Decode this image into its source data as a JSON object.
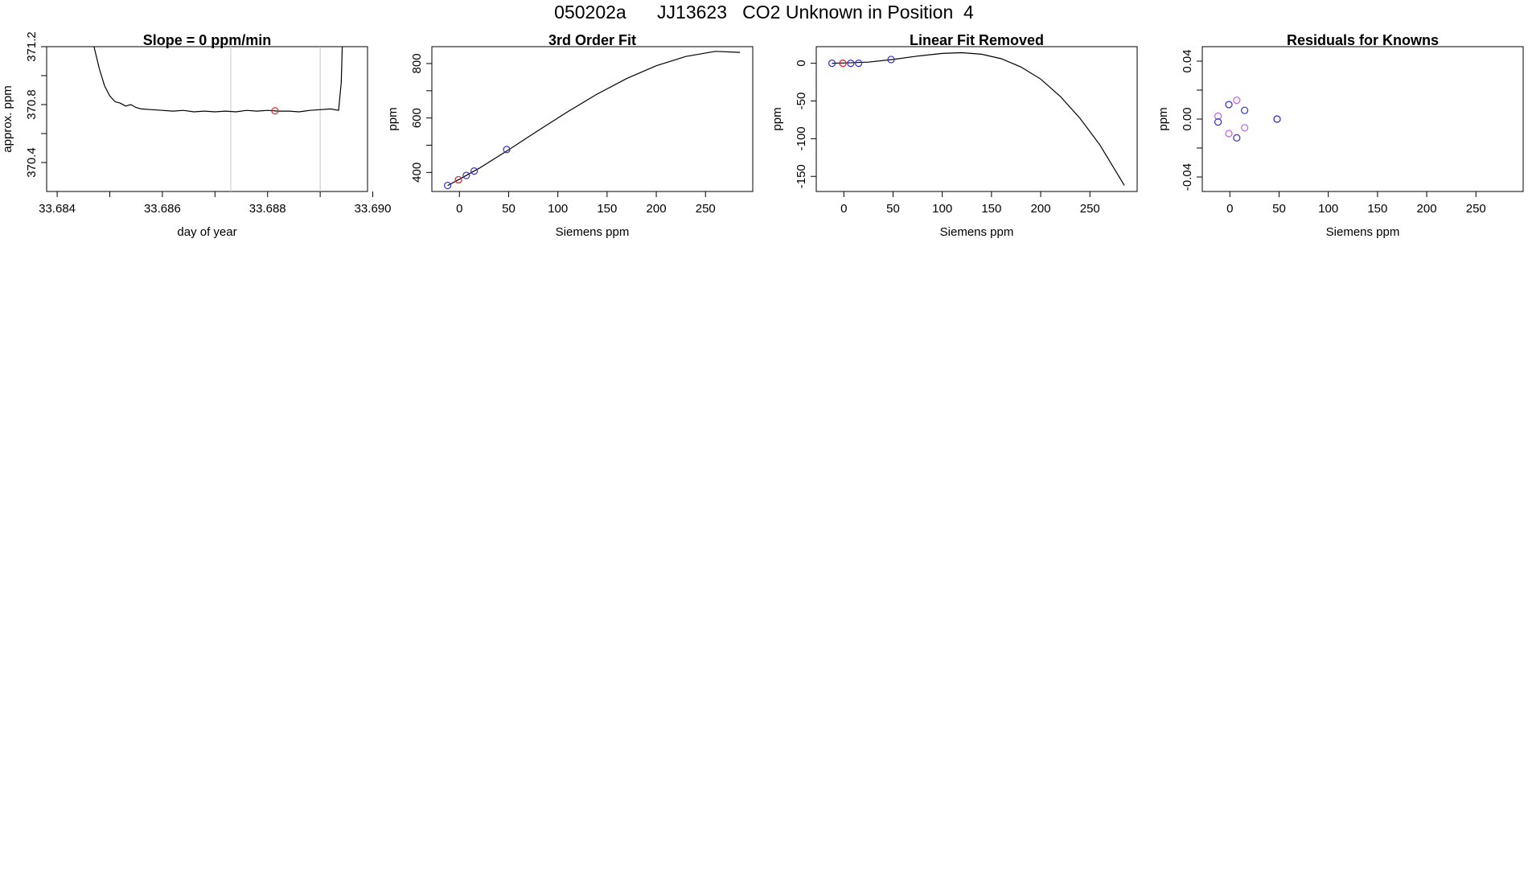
{
  "page": {
    "title": "050202a      JJ13623   CO2 Unknown in Position  4"
  },
  "colors": {
    "line": "#000000",
    "axis": "#000000",
    "grid": "#c8c8c8",
    "known": "#3030d0",
    "unknown": "#e03030",
    "residual_alt": "#c060e0"
  },
  "chart_data": [
    {
      "type": "line",
      "title": "Slope =  0  ppm/min",
      "xlabel": "day of year",
      "ylabel": "approx. ppm",
      "xlim": [
        33.6838,
        33.6899
      ],
      "ylim": [
        370.2,
        371.2
      ],
      "xticks": [
        33.684,
        33.685,
        33.686,
        33.687,
        33.688,
        33.689,
        33.69
      ],
      "xticklabels": [
        "33.684",
        "",
        "33.686",
        "",
        "33.688",
        "",
        "33.690"
      ],
      "yticks": [
        370.4,
        370.6,
        370.8,
        371.0,
        371.2
      ],
      "yticklabels": [
        "370.4",
        "",
        "370.8",
        "",
        "371.2"
      ],
      "vlines": [
        33.6873,
        33.689
      ],
      "series": [
        {
          "x": [
            33.6847,
            33.6848,
            33.6849,
            33.685,
            33.6851,
            33.6852,
            33.6853,
            33.6854,
            33.6855,
            33.6856,
            33.6858,
            33.686,
            33.6862,
            33.6864,
            33.6866,
            33.6868,
            33.687,
            33.6872,
            33.6874,
            33.6876,
            33.6878,
            33.688,
            33.6882,
            33.6884,
            33.6886,
            33.6888,
            33.689,
            33.6892,
            33.68935,
            33.6894,
            33.68942
          ],
          "y": [
            371.2,
            371.05,
            370.93,
            370.86,
            370.82,
            370.81,
            370.79,
            370.8,
            370.78,
            370.77,
            370.765,
            370.76,
            370.755,
            370.76,
            370.75,
            370.755,
            370.75,
            370.755,
            370.75,
            370.76,
            370.755,
            370.76,
            370.755,
            370.755,
            370.75,
            370.76,
            370.765,
            370.77,
            370.76,
            370.95,
            371.2
          ]
        }
      ],
      "highlight": {
        "x": [
          33.68814
        ],
        "y": [
          370.757
        ]
      }
    },
    {
      "type": "line",
      "title": "3rd Order Fit",
      "xlabel": "Siemens ppm",
      "ylabel": "ppm",
      "xlim": [
        -28,
        298
      ],
      "ylim": [
        330,
        862
      ],
      "xticks": [
        0,
        50,
        100,
        150,
        200,
        250
      ],
      "yticks": [
        400,
        500,
        600,
        700,
        800
      ],
      "yticklabels": [
        "400",
        "",
        "600",
        "",
        "800"
      ],
      "series": [
        {
          "x": [
            -12,
            0,
            20,
            50,
            80,
            110,
            140,
            170,
            200,
            230,
            260,
            285
          ],
          "y": [
            352,
            375,
            415,
            483,
            554,
            623,
            688,
            745,
            792,
            826,
            845,
            841
          ]
        }
      ],
      "known_points": {
        "x": [
          -12,
          -1,
          7,
          15,
          48
        ],
        "y": [
          352,
          373,
          389,
          405,
          484
        ]
      },
      "unknown_points": {
        "x": [
          -1
        ],
        "y": [
          373
        ]
      }
    },
    {
      "type": "line",
      "title": "Linear Fit Removed",
      "xlabel": "Siemens ppm",
      "ylabel": "ppm",
      "xlim": [
        -28,
        298
      ],
      "ylim": [
        -170,
        22
      ],
      "xticks": [
        0,
        50,
        100,
        150,
        200,
        250
      ],
      "yticks": [
        0,
        -50,
        -100,
        -150
      ],
      "series": [
        {
          "x": [
            -12,
            0,
            25,
            50,
            75,
            100,
            120,
            140,
            160,
            180,
            200,
            220,
            240,
            260,
            285
          ],
          "y": [
            0,
            0.3,
            1.5,
            5,
            9.5,
            13,
            14,
            12,
            6,
            -5,
            -21,
            -44,
            -73,
            -108,
            -162
          ]
        }
      ],
      "known_points": {
        "x": [
          -12,
          -1,
          7,
          15,
          48
        ],
        "y": [
          0,
          0,
          0,
          0,
          5
        ]
      },
      "unknown_points": {
        "x": [
          -1
        ],
        "y": [
          0
        ]
      }
    },
    {
      "type": "scatter",
      "title": "Residuals for Knowns",
      "xlabel": "Siemens ppm",
      "ylabel": "ppm",
      "xlim": [
        -28,
        298
      ],
      "ylim": [
        -0.05,
        0.05
      ],
      "xticks": [
        0,
        50,
        100,
        150,
        200,
        250
      ],
      "yticks": [
        0.04,
        0.02,
        0,
        -0.02,
        -0.04
      ],
      "yticklabels": [
        "0.04",
        "",
        "0.00",
        "",
        "-0.04"
      ],
      "known_points": {
        "x": [
          -12,
          -1,
          7,
          15,
          48
        ],
        "y": [
          -0.002,
          0.01,
          -0.013,
          0.006,
          0.0
        ]
      },
      "alt_points": {
        "x": [
          -12,
          -1,
          7,
          15,
          48
        ],
        "y": [
          0.002,
          -0.01,
          0.013,
          -0.006,
          0.0
        ]
      }
    }
  ]
}
